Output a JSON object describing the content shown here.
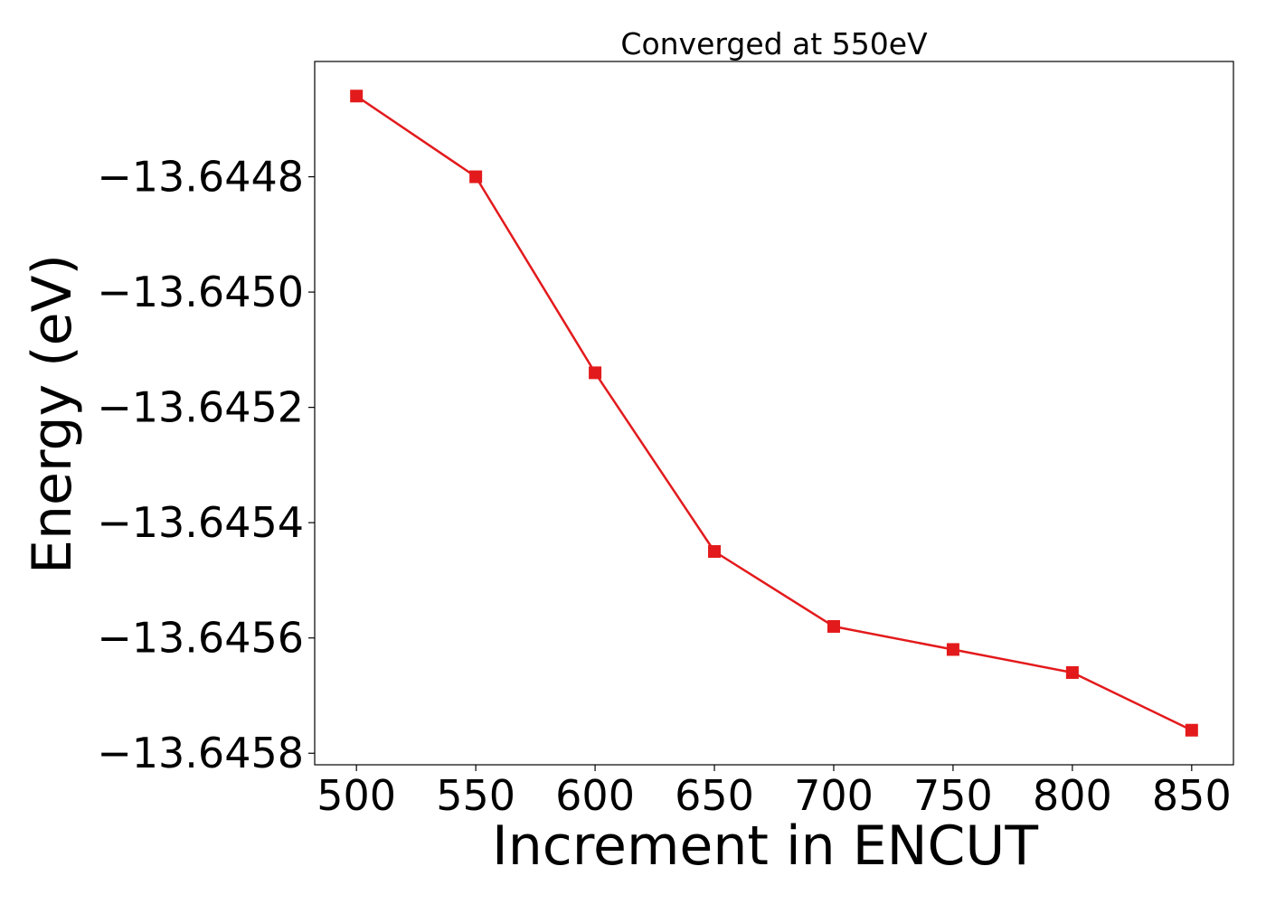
{
  "chart_data": {
    "type": "line",
    "title": "Converged at 550eV",
    "xlabel": "Increment in ENCUT",
    "ylabel": "Energy (eV)",
    "x": [
      500,
      550,
      600,
      650,
      700,
      750,
      800,
      850
    ],
    "series": [
      {
        "values": [
          -13.64466,
          -13.6448,
          -13.64514,
          -13.64545,
          -13.64558,
          -13.64562,
          -13.64566,
          -13.64576
        ],
        "color": "#e31a1c",
        "marker": "square"
      }
    ],
    "xticks": [
      500,
      550,
      600,
      650,
      700,
      750,
      800,
      850
    ],
    "xtick_labels": [
      "500",
      "550",
      "600",
      "650",
      "700",
      "750",
      "800",
      "850"
    ],
    "yticks": [
      -13.6448,
      -13.645,
      -13.6452,
      -13.6454,
      -13.6456,
      -13.6458
    ],
    "ytick_labels": [
      "−13.6448",
      "−13.6450",
      "−13.6452",
      "−13.6454",
      "−13.6456",
      "−13.6458"
    ],
    "xlim": [
      482.5,
      867.5
    ],
    "ylim": [
      -13.64582,
      -13.6446
    ],
    "grid": false,
    "legend": "none"
  }
}
